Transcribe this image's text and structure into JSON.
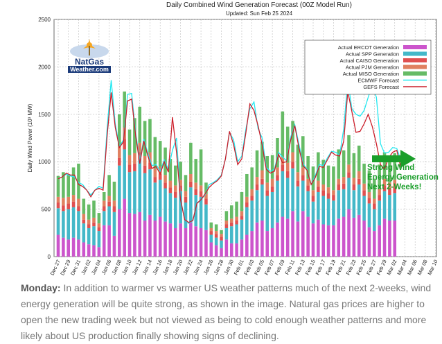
{
  "caption": {
    "lead": "Monday:",
    "text": " In addition to warmer vs warmer US weather patterns much of the next 2-weeks, wind energy generation will be quite strong, as shown in the image. Natural gas prices are higher to open the new trading week but not viewed as being to cold enough weather patterns and more likely about US production finally showing signs of declining."
  },
  "logo": {
    "line1": "NatGas",
    "line2": "Weather.com"
  },
  "annotation": {
    "lines": [
      "Strong Wind",
      "Energy Generation",
      "Next 2-Weeks!"
    ],
    "color": "#1a9e2a"
  },
  "chart_data": {
    "type": "bar",
    "title": "Daily Combined Wind Generation Forecast (00Z Model Run)",
    "subtitle": "Updated: Sun Feb 25 2024",
    "ylabel": "Daily Wind Power (10³ MW)",
    "ylim": [
      0,
      2500
    ],
    "yticks": [
      0,
      500,
      1000,
      1500,
      2000,
      2500
    ],
    "x_labels": [
      "Dec 27",
      "Dec 29",
      "Dec 31",
      "Jan 02",
      "Jan 04",
      "Jan 06",
      "Jan 08",
      "Jan 10",
      "Jan 12",
      "Jan 14",
      "Jan 16",
      "Jan 18",
      "Jan 20",
      "Jan 22",
      "Jan 24",
      "Jan 26",
      "Jan 28",
      "Jan 30",
      "Feb 01",
      "Feb 03",
      "Feb 05",
      "Feb 07",
      "Feb 09",
      "Feb 11",
      "Feb 13",
      "Feb 15",
      "Feb 17",
      "Feb 19",
      "Feb 21",
      "Feb 23",
      "Feb 25",
      "Feb 27",
      "Feb 29",
      "Mar 02",
      "Mar 04",
      "Mar 06",
      "Mar 08",
      "Mar 10"
    ],
    "legend_position": "top-right",
    "grid": true,
    "stacked_series": [
      {
        "name": "Actual ERCOT Generation",
        "color": "#cc55cc",
        "values": [
          230,
          200,
          180,
          200,
          180,
          150,
          130,
          120,
          100,
          330,
          330,
          220,
          500,
          610,
          460,
          450,
          470,
          380,
          440,
          380,
          420,
          370,
          350,
          300,
          350,
          300,
          360,
          320,
          300,
          280,
          150,
          120,
          90,
          180,
          140,
          140,
          180,
          230,
          270,
          360,
          380,
          270,
          300,
          360,
          420,
          400,
          480,
          370,
          480,
          420,
          350,
          390,
          340,
          330,
          330,
          400,
          420,
          500,
          410,
          440,
          380,
          310,
          270,
          330,
          400,
          380,
          380
        ]
      },
      {
        "name": "Actual SPP Generation",
        "color": "#44b8c8",
        "values": [
          280,
          280,
          320,
          320,
          300,
          200,
          170,
          200,
          170,
          150,
          200,
          250,
          460,
          520,
          430,
          450,
          550,
          500,
          480,
          400,
          390,
          350,
          320,
          320,
          340,
          270,
          370,
          330,
          330,
          270,
          80,
          80,
          80,
          120,
          180,
          200,
          210,
          290,
          320,
          340,
          380,
          370,
          380,
          440,
          480,
          430,
          450,
          370,
          320,
          270,
          230,
          290,
          300,
          280,
          260,
          300,
          290,
          330,
          290,
          320,
          260,
          250,
          230,
          260,
          290,
          270,
          290
        ]
      },
      {
        "name": "Actual CAISO Generation",
        "color": "#e05050",
        "values": [
          60,
          60,
          60,
          60,
          50,
          40,
          40,
          40,
          40,
          50,
          50,
          60,
          80,
          110,
          80,
          80,
          80,
          80,
          70,
          60,
          60,
          60,
          60,
          60,
          60,
          60,
          60,
          60,
          60,
          60,
          40,
          40,
          40,
          40,
          40,
          40,
          40,
          50,
          50,
          60,
          60,
          60,
          60,
          60,
          70,
          70,
          70,
          60,
          60,
          60,
          60,
          60,
          60,
          60,
          60,
          60,
          60,
          60,
          60,
          60,
          60,
          60,
          60,
          60,
          60,
          60,
          60
        ]
      },
      {
        "name": "Actual PJM Generation",
        "color": "#e08060",
        "values": [
          60,
          80,
          70,
          70,
          80,
          60,
          50,
          50,
          40,
          60,
          60,
          60,
          120,
          120,
          100,
          110,
          100,
          100,
          110,
          90,
          80,
          80,
          70,
          70,
          60,
          60,
          80,
          70,
          60,
          50,
          30,
          30,
          30,
          40,
          40,
          40,
          50,
          60,
          70,
          80,
          90,
          80,
          80,
          80,
          80,
          90,
          100,
          90,
          80,
          70,
          60,
          60,
          60,
          60,
          50,
          60,
          70,
          80,
          70,
          80,
          70,
          60,
          50,
          60,
          70,
          70,
          80
        ]
      },
      {
        "name": "Actual MISO Generation",
        "color": "#66bb66",
        "values": [
          220,
          270,
          230,
          290,
          370,
          160,
          160,
          180,
          110,
          90,
          220,
          200,
          340,
          380,
          270,
          370,
          380,
          370,
          350,
          330,
          270,
          290,
          230,
          210,
          190,
          170,
          330,
          250,
          380,
          120,
          60,
          70,
          40,
          100,
          140,
          160,
          200,
          240,
          230,
          280,
          300,
          280,
          250,
          310,
          480,
          380,
          330,
          290,
          330,
          240,
          250,
          300,
          260,
          230,
          250,
          310,
          280,
          310,
          260,
          270,
          210,
          230,
          210,
          260,
          280,
          270,
          280
        ]
      }
    ],
    "bar_count": 67,
    "forecast_series": [
      {
        "name": "ECMWF Forecast",
        "color": "#22e8f0",
        "values": [
          820,
          840,
          870,
          850,
          840,
          780,
          760,
          700,
          650,
          700,
          740,
          720,
          1360,
          1860,
          1400,
          1160,
          1230,
          1710,
          1720,
          1300,
          1010,
          1240,
          1090,
          960,
          970,
          900,
          1020,
          920,
          1120,
          1250,
          610,
          390,
          350,
          380,
          560,
          600,
          650,
          760,
          780,
          810,
          860,
          1030,
          1310,
          1230,
          1000,
          1060,
          1340,
          1560,
          1630,
          1350,
          1250,
          940,
          900,
          920,
          1100,
          1050,
          1010,
          1260,
          1390,
          1190,
          980,
          920,
          760,
          850,
          970,
          960,
          1040,
          1110,
          1100,
          1070,
          1350,
          1860,
          1560,
          1500,
          1480,
          1540,
          1680,
          1810,
          1680,
          1190,
          1090,
          1100,
          1150,
          1140,
          1020
        ]
      },
      {
        "name": "GEFS Forecast",
        "color": "#cc1e2a",
        "values": [
          820,
          840,
          880,
          860,
          860,
          760,
          740,
          700,
          630,
          700,
          720,
          700,
          1280,
          1730,
          1360,
          1150,
          1210,
          1640,
          1660,
          1270,
          980,
          1220,
          1060,
          930,
          950,
          870,
          1000,
          890,
          1470,
          1100,
          600,
          390,
          360,
          380,
          560,
          600,
          660,
          730,
          770,
          800,
          850,
          1030,
          1320,
          1180,
          970,
          1030,
          1300,
          1610,
          1540,
          1380,
          1180,
          920,
          880,
          900,
          1080,
          990,
          1000,
          1230,
          1380,
          1150,
          960,
          910,
          760,
          830,
          950,
          940,
          1020,
          1100,
          1070,
          1060,
          1220,
          1740,
          1530,
          1310,
          1320,
          1400,
          1500,
          1370,
          1190,
          970,
          920,
          1040,
          1100,
          1120,
          940
        ]
      }
    ],
    "forecast_x_start": 0,
    "forecast_step_days": 0.8
  }
}
